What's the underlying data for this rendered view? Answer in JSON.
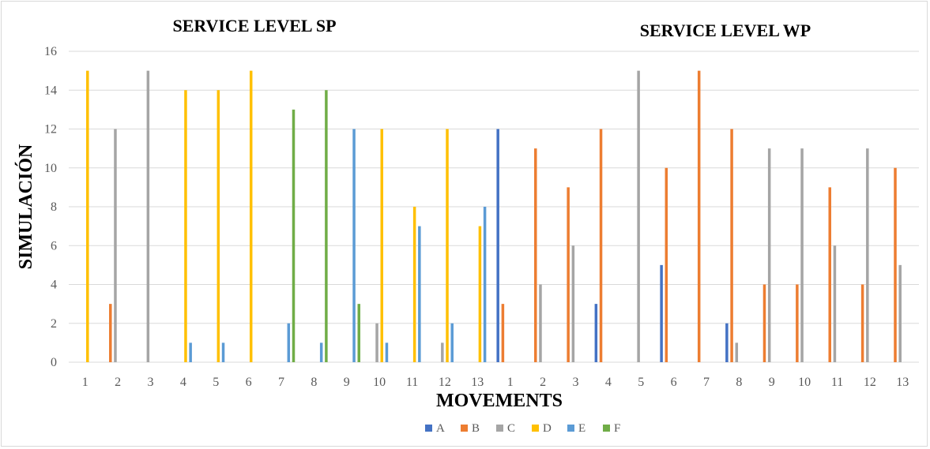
{
  "chart_data": {
    "type": "bar",
    "titles": [
      "SERVICE LEVEL SP",
      "SERVICE LEVEL WP"
    ],
    "xlabel": "MOVEMENTS",
    "ylabel": "SIMULACIÓN",
    "ylim": [
      0,
      16
    ],
    "yticks": [
      0,
      2,
      4,
      6,
      8,
      10,
      12,
      14,
      16
    ],
    "grid": true,
    "legend_position": "bottom",
    "categories": [
      "1",
      "2",
      "3",
      "4",
      "5",
      "6",
      "7",
      "8",
      "9",
      "10",
      "11",
      "12",
      "13",
      "1",
      "2",
      "3",
      "4",
      "5",
      "6",
      "7",
      "8",
      "9",
      "10",
      "11",
      "12",
      "13"
    ],
    "series": [
      {
        "name": "A",
        "color": "#4472c4",
        "values": [
          0,
          0,
          0,
          0,
          0,
          0,
          0,
          0,
          0,
          0,
          0,
          0,
          0,
          12,
          0,
          0,
          3,
          0,
          5,
          0,
          2,
          0,
          0,
          0,
          0,
          0
        ]
      },
      {
        "name": "B",
        "color": "#ed7d31",
        "values": [
          0,
          3,
          0,
          0,
          0,
          0,
          0,
          0,
          0,
          0,
          0,
          0,
          0,
          3,
          11,
          9,
          12,
          0,
          10,
          15,
          12,
          4,
          4,
          9,
          4,
          10
        ]
      },
      {
        "name": "C",
        "color": "#a5a5a5",
        "values": [
          0,
          12,
          15,
          0,
          0,
          0,
          0,
          0,
          0,
          2,
          0,
          1,
          0,
          0,
          4,
          6,
          0,
          15,
          0,
          0,
          1,
          11,
          11,
          6,
          11,
          5
        ]
      },
      {
        "name": "D",
        "color": "#ffc000",
        "values": [
          15,
          0,
          0,
          14,
          14,
          15,
          0,
          0,
          0,
          12,
          8,
          12,
          7,
          0,
          0,
          0,
          0,
          0,
          0,
          0,
          0,
          0,
          0,
          0,
          0,
          0
        ]
      },
      {
        "name": "E",
        "color": "#5b9bd5",
        "values": [
          0,
          0,
          0,
          1,
          1,
          0,
          2,
          1,
          12,
          1,
          7,
          2,
          8,
          0,
          0,
          0,
          0,
          0,
          0,
          0,
          0,
          0,
          0,
          0,
          0,
          0
        ]
      },
      {
        "name": "F",
        "color": "#70ad47",
        "values": [
          0,
          0,
          0,
          0,
          0,
          0,
          13,
          14,
          3,
          0,
          0,
          0,
          0,
          0,
          0,
          0,
          0,
          0,
          0,
          0,
          0,
          0,
          0,
          0,
          0,
          0
        ]
      }
    ]
  }
}
